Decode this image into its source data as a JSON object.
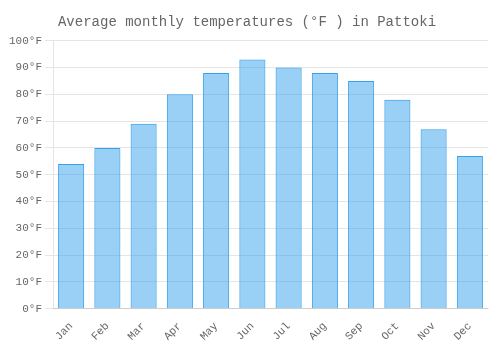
{
  "chart_data": {
    "type": "bar",
    "title": "Average monthly temperatures (°F ) in Pattoki",
    "categories": [
      "Jan",
      "Feb",
      "Mar",
      "Apr",
      "May",
      "Jun",
      "Jul",
      "Aug",
      "Sep",
      "Oct",
      "Nov",
      "Dec"
    ],
    "values": [
      54,
      60,
      69,
      80,
      88,
      93,
      90,
      88,
      85,
      78,
      67,
      57
    ],
    "ylim": [
      0,
      100
    ],
    "yticks": [
      {
        "value": 0,
        "label": "0°F"
      },
      {
        "value": 10,
        "label": "10°F"
      },
      {
        "value": 20,
        "label": "20°F"
      },
      {
        "value": 30,
        "label": "30°F"
      },
      {
        "value": 40,
        "label": "40°F"
      },
      {
        "value": 50,
        "label": "50°F"
      },
      {
        "value": 60,
        "label": "60°F"
      },
      {
        "value": 70,
        "label": "70°F"
      },
      {
        "value": 80,
        "label": "80°F"
      },
      {
        "value": 90,
        "label": "90°F"
      },
      {
        "value": 100,
        "label": "100°F"
      }
    ],
    "grid": true
  }
}
